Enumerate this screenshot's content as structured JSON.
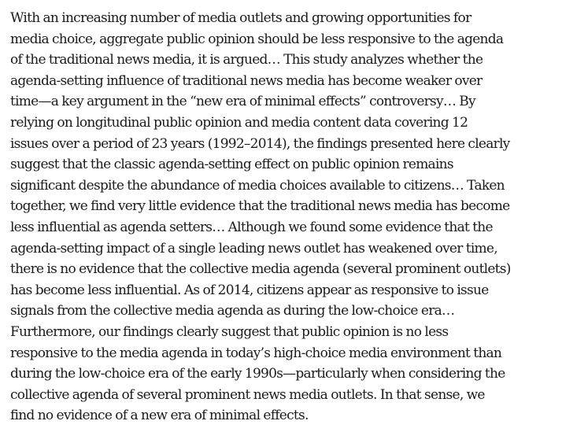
{
  "document": {
    "lines": [
      "With an increasing number of media outlets and growing opportunities for",
      "media choice, aggregate public opinion should be less responsive to the agenda",
      "of the traditional news media, it is argued… This study analyzes whether the",
      "agenda-setting influence of traditional news media has become weaker over",
      "time—a key argument in the “new era of minimal effects” controversy… By",
      "relying on longitudinal public opinion and media content data covering 12",
      "issues over a period of 23 years (1992–2014), the findings presented here clearly",
      "suggest that the classic agenda-setting effect on public opinion remains",
      "significant despite the abundance of media choices available to citizens… Taken",
      "together, we find very little evidence that the traditional news media has become",
      "less influential as agenda setters… Although we found some evidence that the",
      "agenda-setting impact of a single leading news outlet  has weakened over time,",
      "there is no evidence that the collective media agenda (several prominent outlets)",
      "has become less influential. As of 2014, citizens appear  as responsive to issue",
      "signals from the collective media agenda as during the low-choice era…",
      "Furthermore, our findings clearly suggest that public opinion is no less",
      "responsive to the media agenda in today’s high-choice media environment than",
      "during the low-choice era of the early 1990s—particularly  when considering the",
      "collective agenda of several prominent news media outlets. In that sense, we",
      "find no evidence of a new era of minimal effects."
    ]
  }
}
